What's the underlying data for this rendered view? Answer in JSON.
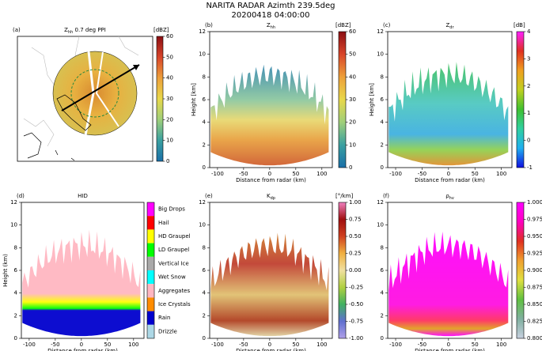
{
  "title": "NARITA RADAR Azimth 239.5deg",
  "subtitle": "20200418 04:00:00",
  "panels": [
    {
      "label": "(a)",
      "title": "Z",
      "title_sub": "hh",
      "title_rest": " 0.7 deg PPI",
      "colorbar": {
        "unit": "[dBZ]",
        "lim": [
          0,
          60
        ],
        "ticks": [
          0,
          10,
          20,
          30,
          40,
          50,
          60
        ],
        "colors": [
          "#1a6fa8",
          "#3aa0a0",
          "#9fcf7a",
          "#e8d84a",
          "#eda03a",
          "#d8452a",
          "#8c0f14"
        ]
      }
    },
    {
      "label": "(b)",
      "title": "Z",
      "title_sub": "hh",
      "xlim": [
        -115,
        120
      ],
      "ylim": [
        0,
        12
      ],
      "xticks": [
        -100,
        -50,
        0,
        50,
        100
      ],
      "yticks": [
        0,
        2,
        4,
        6,
        8,
        10,
        12
      ],
      "xlabel": "Distance from radar (km)",
      "ylabel": "Height [km]",
      "colorbar": {
        "unit": "[dBZ]",
        "lim": [
          0,
          60
        ],
        "ticks": [
          0,
          10,
          20,
          30,
          40,
          50,
          60
        ],
        "colors": [
          "#1a6fa8",
          "#3aa0a0",
          "#9fcf7a",
          "#e8d84a",
          "#eda03a",
          "#d8452a",
          "#8c0f14"
        ]
      }
    },
    {
      "label": "(c)",
      "title": "Z",
      "title_sub": "dr",
      "xlim": [
        -115,
        120
      ],
      "ylim": [
        0,
        12
      ],
      "xticks": [
        -100,
        -50,
        0,
        50,
        100
      ],
      "yticks": [
        0,
        2,
        4,
        6,
        8,
        10,
        12
      ],
      "xlabel": "Distance from radar (km)",
      "ylabel": "Height [km]",
      "colorbar": {
        "unit": "[dB]",
        "lim": [
          -1,
          4
        ],
        "ticks": [
          -1,
          0,
          1,
          2,
          3,
          4
        ],
        "colors": [
          "#1010e0",
          "#20b0f0",
          "#30d0a0",
          "#40c030",
          "#c0d020",
          "#f0a020",
          "#e03020",
          "#ff20ff"
        ]
      }
    },
    {
      "label": "(d)",
      "title": "HID",
      "xlim": [
        -115,
        120
      ],
      "ylim": [
        0,
        12
      ],
      "xticks": [
        -100,
        -50,
        0,
        50,
        100
      ],
      "yticks": [
        0,
        2,
        4,
        6,
        8,
        10,
        12
      ],
      "xlabel": "Distance from radar (km)",
      "ylabel": "Height (km)",
      "classes": [
        {
          "name": "Big Drops",
          "color": "#ff00ff"
        },
        {
          "name": "Hail",
          "color": "#ff0000"
        },
        {
          "name": "HD Graupel",
          "color": "#ffff00"
        },
        {
          "name": "LD Graupel",
          "color": "#00ff00"
        },
        {
          "name": "Vertical Ice",
          "color": "#a9a9a9"
        },
        {
          "name": "Wet Snow",
          "color": "#00ffff"
        },
        {
          "name": "Aggregates",
          "color": "#ffb6c1"
        },
        {
          "name": "Ice Crystals",
          "color": "#ff8c00"
        },
        {
          "name": "Rain",
          "color": "#0000cd"
        },
        {
          "name": "Drizzle",
          "color": "#add8e6"
        }
      ]
    },
    {
      "label": "(e)",
      "title": "K",
      "title_sub": "dp",
      "xlim": [
        -115,
        120
      ],
      "ylim": [
        0,
        12
      ],
      "xticks": [
        -100,
        -50,
        0,
        50,
        100
      ],
      "yticks": [
        0,
        2,
        4,
        6,
        8,
        10,
        12
      ],
      "xlabel": "Distance from radar (km)",
      "colorbar": {
        "unit": "[°/km]",
        "lim": [
          -1,
          1
        ],
        "ticks": [
          {
            "value": -1,
            "label": "-1.00"
          },
          {
            "value": -0.75,
            "label": "-0.75"
          },
          {
            "value": -0.5,
            "label": "-0.50"
          },
          {
            "value": -0.25,
            "label": "-0.25"
          },
          {
            "value": 0,
            "label": "0.00"
          },
          {
            "value": 0.25,
            "label": "0.25"
          },
          {
            "value": 0.5,
            "label": "0.50"
          },
          {
            "value": 0.75,
            "label": "0.75"
          },
          {
            "value": 1,
            "label": "1.00"
          }
        ],
        "colors": [
          "#b0a0e8",
          "#6070d0",
          "#40b060",
          "#b0d040",
          "#f0e0a0",
          "#f0b040",
          "#d04020",
          "#a01010",
          "#f080c0"
        ]
      }
    },
    {
      "label": "(f)",
      "title": "ρ",
      "title_sub": "hv",
      "xlim": [
        -115,
        120
      ],
      "ylim": [
        0,
        12
      ],
      "xticks": [
        -100,
        -50,
        0,
        50,
        100
      ],
      "yticks": [
        0,
        2,
        4,
        6,
        8,
        10,
        12
      ],
      "xlabel": "Distance from radar (km)",
      "colorbar": {
        "unit": "",
        "lim": [
          0.8,
          1.0
        ],
        "ticks": [
          {
            "value": 0.8,
            "label": "0.800"
          },
          {
            "value": 0.825,
            "label": "0.825"
          },
          {
            "value": 0.85,
            "label": "0.850"
          },
          {
            "value": 0.875,
            "label": "0.875"
          },
          {
            "value": 0.9,
            "label": "0.900"
          },
          {
            "value": 0.925,
            "label": "0.925"
          },
          {
            "value": 0.95,
            "label": "0.950"
          },
          {
            "value": 0.975,
            "label": "0.975"
          },
          {
            "value": 1.0,
            "label": "1.000"
          }
        ],
        "colors": [
          "#c8d0e0",
          "#80b0a0",
          "#60c040",
          "#e0e040",
          "#f0a030",
          "#e03020",
          "#ff00c0",
          "#ff00ff"
        ]
      }
    }
  ]
}
